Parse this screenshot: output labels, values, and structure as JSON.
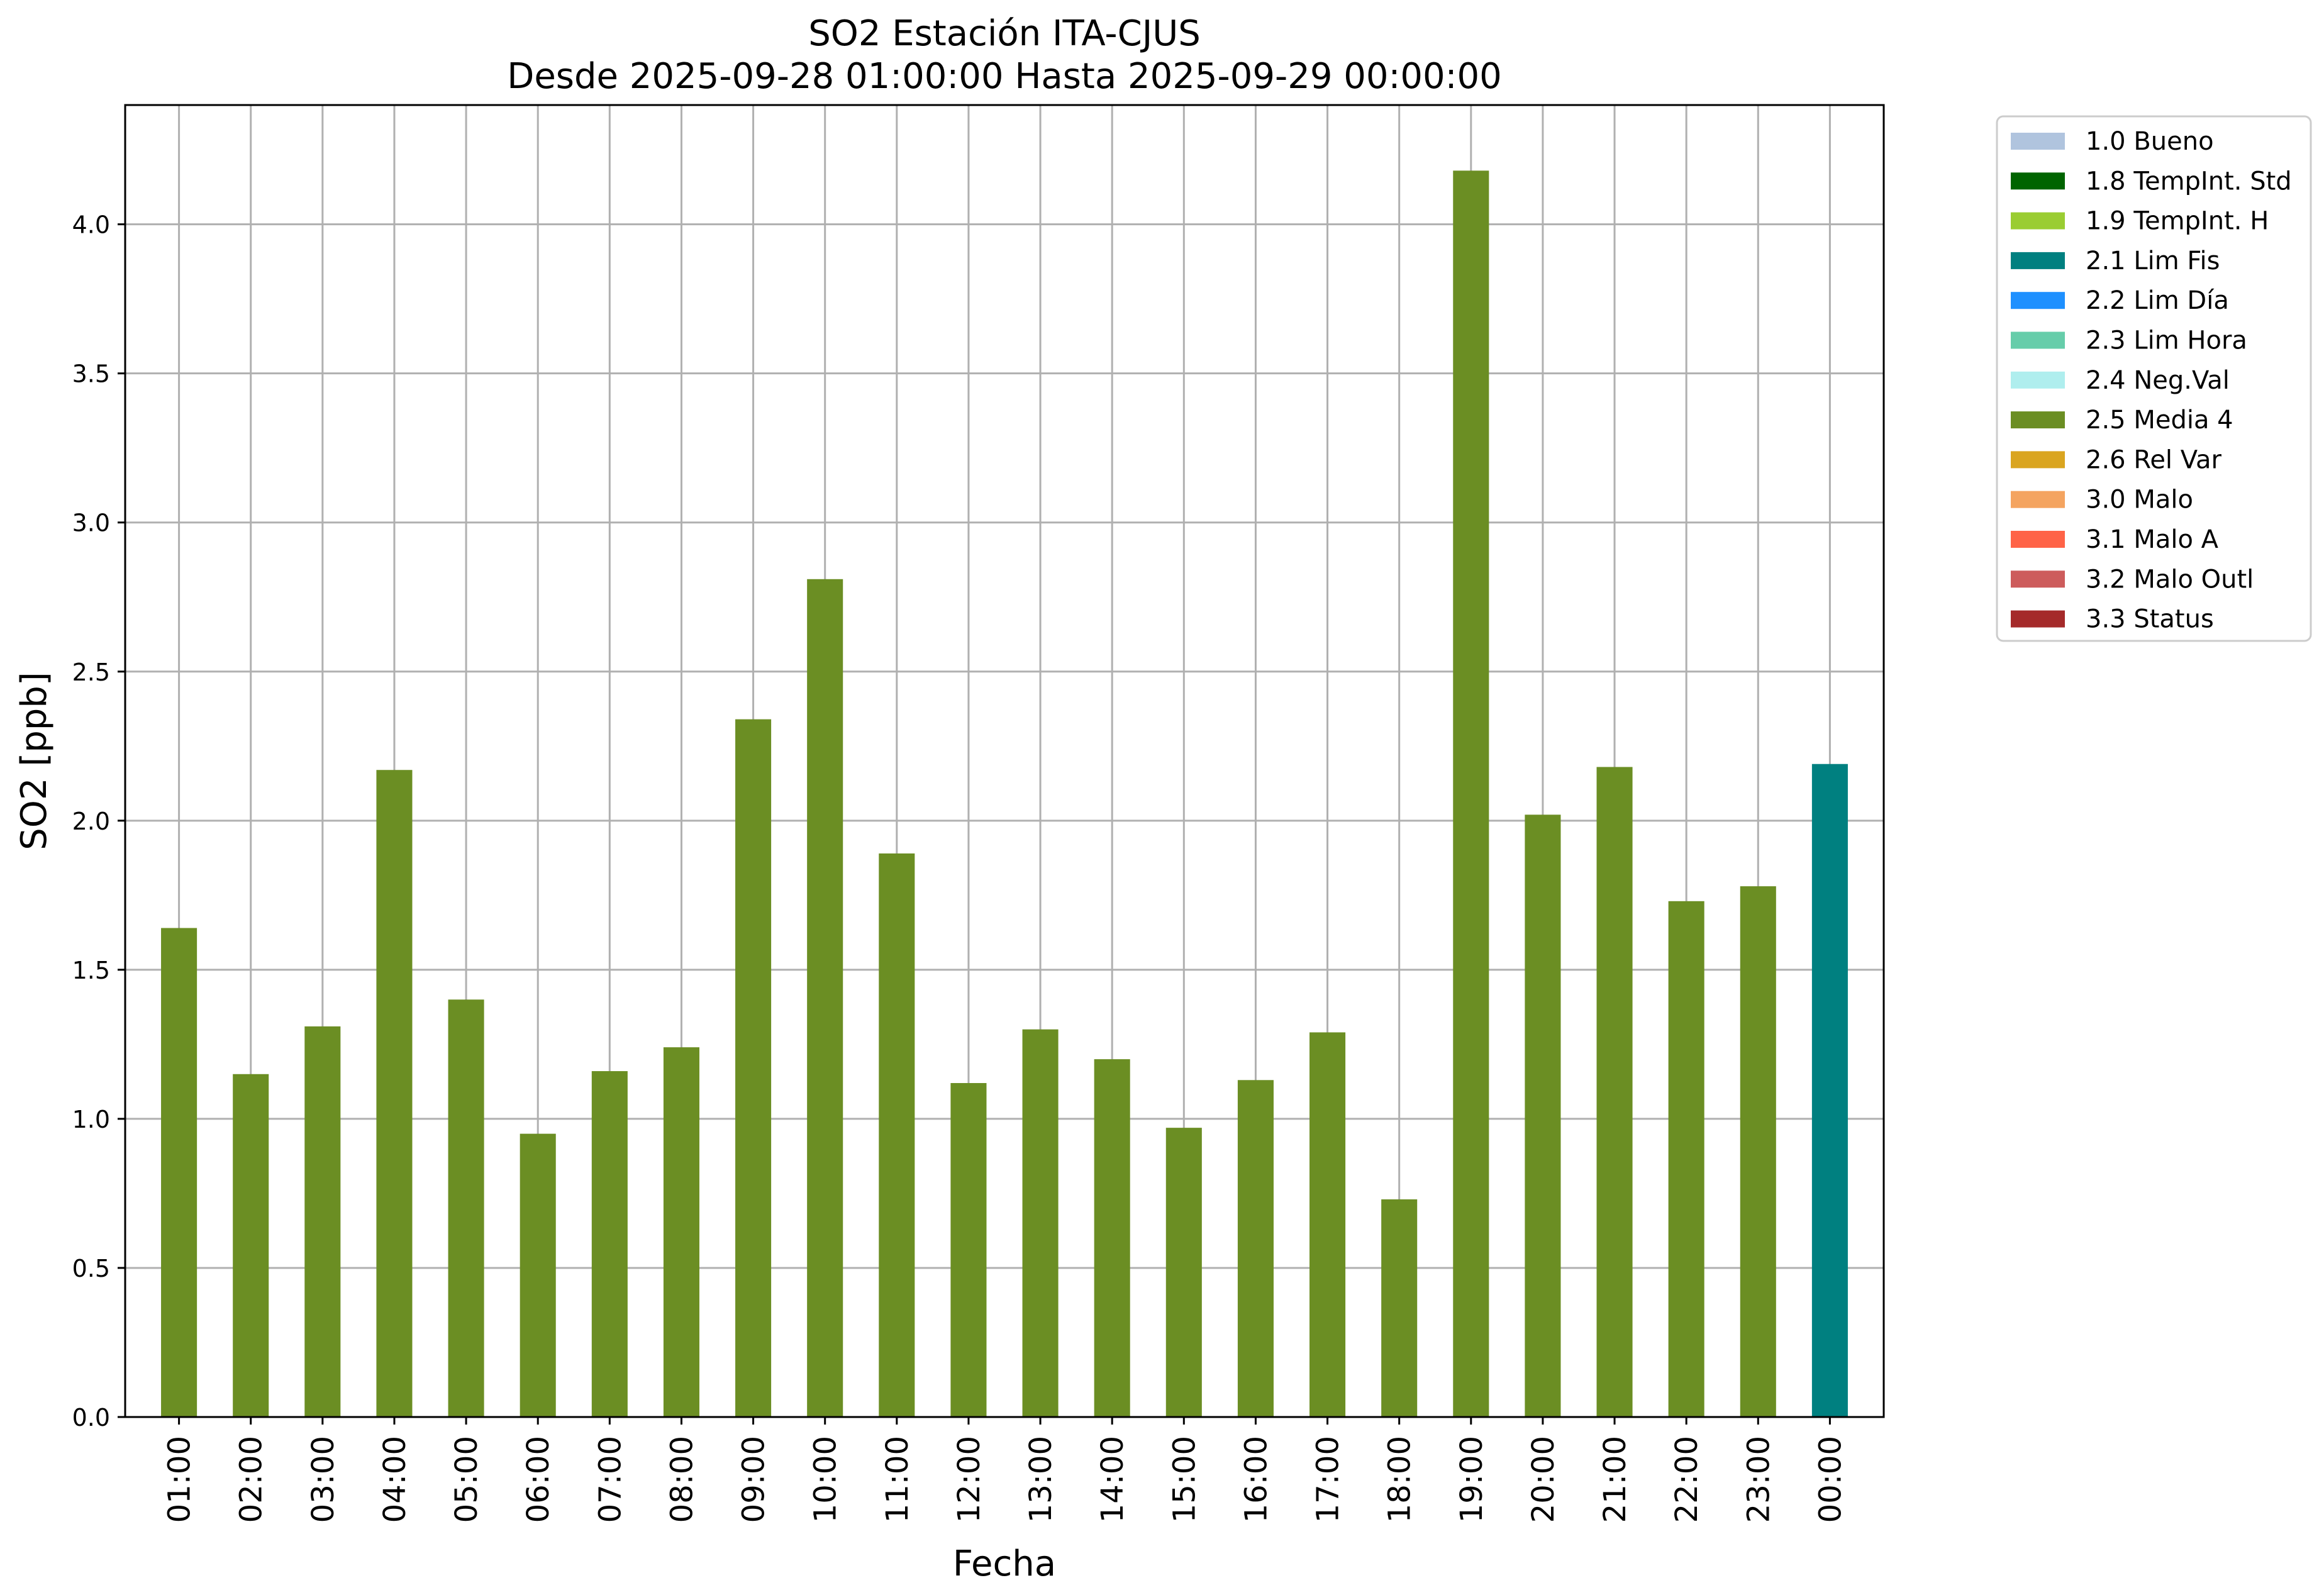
{
  "chart_data": {
    "type": "bar",
    "title": "SO2 Estación ITA-CJUS",
    "subtitle": "Desde 2025-09-28 01:00:00 Hasta 2025-09-29 00:00:00",
    "xlabel": "Fecha",
    "ylabel": "SO2 [ppb]",
    "ylim": [
      0,
      4.4
    ],
    "yticks": [
      "0.0",
      "0.5",
      "1.0",
      "1.5",
      "2.0",
      "2.5",
      "3.0",
      "3.5",
      "4.0"
    ],
    "grid": true,
    "legend_position": "outside-top-right",
    "categories": [
      "01:00",
      "02:00",
      "03:00",
      "04:00",
      "05:00",
      "06:00",
      "07:00",
      "08:00",
      "09:00",
      "10:00",
      "11:00",
      "12:00",
      "13:00",
      "14:00",
      "15:00",
      "16:00",
      "17:00",
      "18:00",
      "19:00",
      "20:00",
      "21:00",
      "22:00",
      "23:00",
      "00:00"
    ],
    "values": [
      1.64,
      1.15,
      1.31,
      2.17,
      1.4,
      0.95,
      1.16,
      1.24,
      2.34,
      2.81,
      1.89,
      1.12,
      1.3,
      1.2,
      0.97,
      1.13,
      1.29,
      0.73,
      4.18,
      2.02,
      2.18,
      1.73,
      1.78,
      2.19
    ],
    "flags": [
      "2.5 Media 4",
      "2.5 Media 4",
      "2.5 Media 4",
      "2.5 Media 4",
      "2.5 Media 4",
      "2.5 Media 4",
      "2.5 Media 4",
      "2.5 Media 4",
      "2.5 Media 4",
      "2.5 Media 4",
      "2.5 Media 4",
      "2.5 Media 4",
      "2.5 Media 4",
      "2.5 Media 4",
      "2.5 Media 4",
      "2.5 Media 4",
      "2.5 Media 4",
      "2.5 Media 4",
      "2.5 Media 4",
      "2.5 Media 4",
      "2.5 Media 4",
      "2.5 Media 4",
      "2.5 Media 4",
      "2.1 Lim Fis"
    ],
    "legend": [
      {
        "label": "1.0 Bueno",
        "color": "#b0c4de"
      },
      {
        "label": "1.8 TempInt. Std",
        "color": "#006400"
      },
      {
        "label": "1.9 TempInt. H",
        "color": "#9acd32"
      },
      {
        "label": "2.1 Lim Fis",
        "color": "#008080"
      },
      {
        "label": "2.2 Lim Día",
        "color": "#1e90ff"
      },
      {
        "label": "2.3 Lim Hora",
        "color": "#66cdaa"
      },
      {
        "label": "2.4 Neg.Val",
        "color": "#afeeee"
      },
      {
        "label": "2.5 Media 4",
        "color": "#6b8e23"
      },
      {
        "label": "2.6 Rel Var",
        "color": "#daa520"
      },
      {
        "label": "3.0 Malo",
        "color": "#f4a460"
      },
      {
        "label": "3.1 Malo A",
        "color": "#ff6347"
      },
      {
        "label": "3.2 Malo Outl",
        "color": "#cd5c5c"
      },
      {
        "label": "3.3 Status",
        "color": "#a52a2a"
      }
    ]
  }
}
